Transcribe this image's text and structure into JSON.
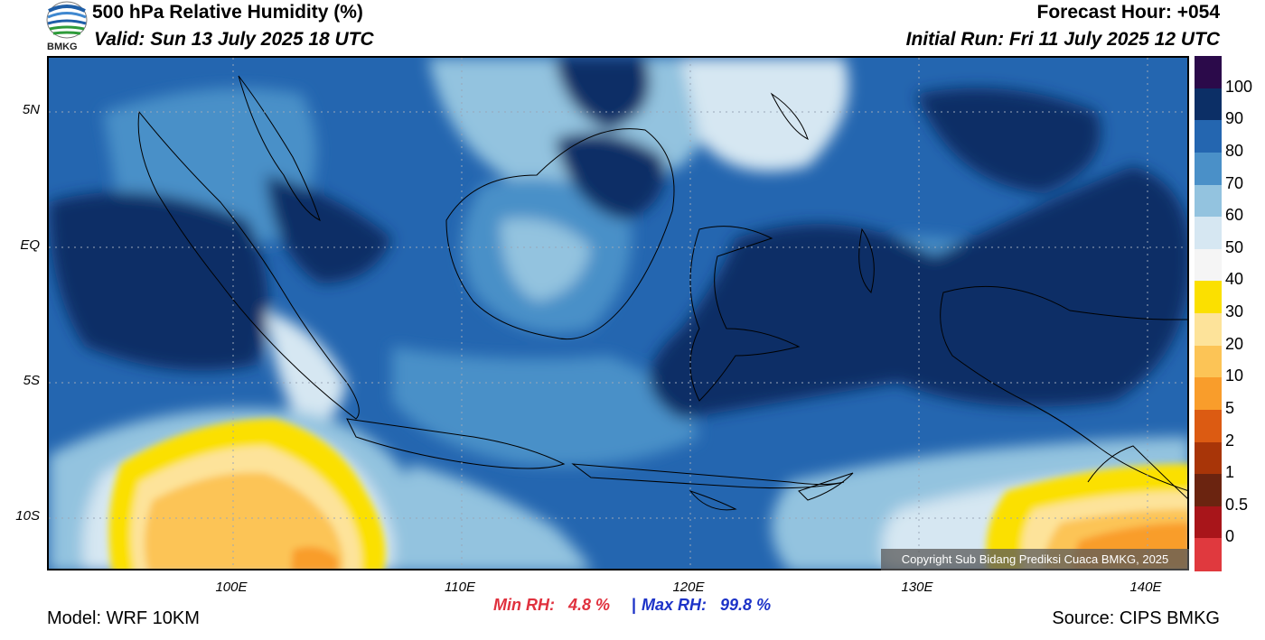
{
  "header": {
    "title": "500 hPa Relative Humidity (%)",
    "valid": "Valid: Sun 13 July 2025 18 UTC",
    "forecast_hour": "Forecast Hour: +054",
    "initial_run": "Initial Run: Fri 11 July 2025 12 UTC",
    "logo_text": "BMKG"
  },
  "map": {
    "lat_labels": [
      "5N",
      "EQ",
      "5S",
      "10S"
    ],
    "lon_labels": [
      "100E",
      "110E",
      "120E",
      "130E",
      "140E"
    ],
    "copyright": "Copyright Sub Bidang Prediksi Cuaca BMKG, 2025"
  },
  "colorbar": {
    "labels": [
      "100",
      "90",
      "80",
      "70",
      "60",
      "50",
      "40",
      "30",
      "20",
      "10",
      "5",
      "2",
      "1",
      "0.5",
      "0"
    ],
    "colors": [
      "#2b0a4a",
      "#0c2f66",
      "#2466b0",
      "#4a90c8",
      "#93c3df",
      "#d6e7f2",
      "#f5f5f5",
      "#fbe000",
      "#fde39a",
      "#fcc456",
      "#f99d2b",
      "#dc5b12",
      "#a83508",
      "#6b2410",
      "#a8151a",
      "#e0393e"
    ]
  },
  "footer": {
    "min_rh_label": "Min RH:",
    "min_rh_value": "4.8 %",
    "separator": "|",
    "max_rh_label": "Max RH:",
    "max_rh_value": "99.8 %",
    "model": "Model: WRF 10KM",
    "source": "Source: CIPS BMKG"
  }
}
